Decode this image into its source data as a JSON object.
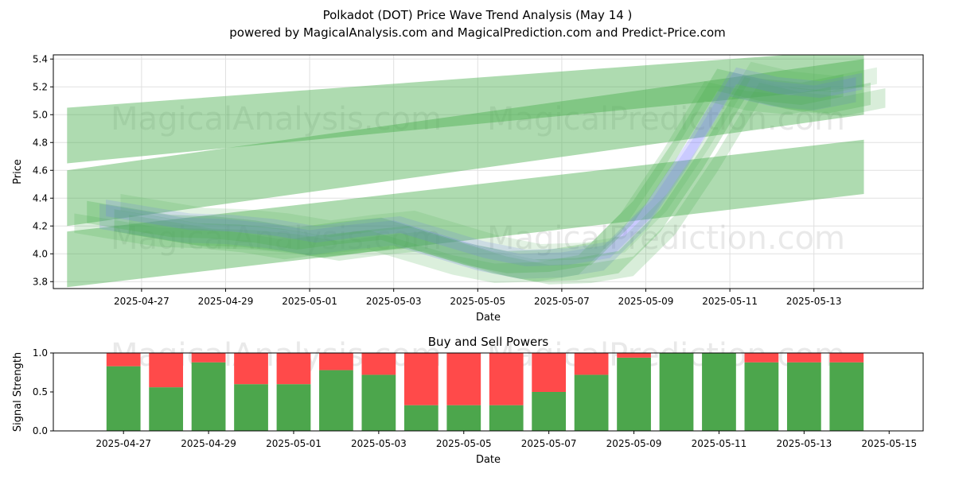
{
  "header": {
    "title_line1": "Polkadot (DOT) Price Wave Trend Analysis (May 14 )",
    "title_line2": "powered by MagicalAnalysis.com and MagicalPrediction.com and Predict-Price.com"
  },
  "watermarks": {
    "left": "MagicalAnalysis.com",
    "right": "MagicalPrediction.com"
  },
  "colors": {
    "green_band": "#4caf50",
    "blue_band": "#6f6fff",
    "buy": "#4ca64c",
    "sell": "#ff4a4a",
    "grid": "#e0e0e0"
  },
  "chart_data": [
    {
      "type": "area",
      "title": "",
      "xlabel": "Date",
      "ylabel": "Price",
      "ylim": [
        3.75,
        5.43
      ],
      "y_ticks": [
        "3.8",
        "4.0",
        "4.2",
        "4.4",
        "4.6",
        "4.8",
        "5.0",
        "5.2",
        "5.4"
      ],
      "x_ticks": [
        "2025-04-27",
        "2025-04-29",
        "2025-05-01",
        "2025-05-03",
        "2025-05-05",
        "2025-05-07",
        "2025-05-09",
        "2025-05-11",
        "2025-05-13"
      ],
      "grid": true,
      "price_line": {
        "dates": [
          "2025-04-26",
          "2025-04-27",
          "2025-04-28",
          "2025-04-29",
          "2025-04-30",
          "2025-05-01",
          "2025-05-02",
          "2025-05-03",
          "2025-05-04",
          "2025-05-05",
          "2025-05-06",
          "2025-05-07",
          "2025-05-08",
          "2025-05-09",
          "2025-05-10",
          "2025-05-11",
          "2025-05-12",
          "2025-05-13",
          "2025-05-14"
        ],
        "values": [
          4.27,
          4.22,
          4.17,
          4.16,
          4.13,
          4.08,
          4.12,
          4.15,
          4.06,
          3.97,
          3.91,
          3.92,
          3.97,
          4.27,
          4.72,
          5.22,
          5.15,
          5.12,
          5.18
        ]
      },
      "trend_bands": [
        {
          "start_date": "2025-04-25",
          "end_date": "2025-05-14",
          "start": [
            4.65,
            5.05
          ],
          "end": [
            5.2,
            5.47
          ]
        },
        {
          "start_date": "2025-04-25",
          "end_date": "2025-05-14",
          "start": [
            4.2,
            4.6
          ],
          "end": [
            5.0,
            5.4
          ]
        },
        {
          "start_date": "2025-04-25",
          "end_date": "2025-05-14",
          "start": [
            3.76,
            4.16
          ],
          "end": [
            4.43,
            4.82
          ]
        }
      ]
    },
    {
      "type": "bar",
      "title": "Buy and Sell Powers",
      "xlabel": "Date",
      "ylabel": "Signal Strength",
      "ylim": [
        0,
        1
      ],
      "y_ticks": [
        "0.0",
        "0.5",
        "1.0"
      ],
      "x_ticks": [
        "2025-04-27",
        "2025-04-29",
        "2025-05-01",
        "2025-05-03",
        "2025-05-05",
        "2025-05-07",
        "2025-05-09",
        "2025-05-11",
        "2025-05-13",
        "2025-05-15"
      ],
      "categories": [
        "2025-04-27",
        "2025-04-28",
        "2025-04-29",
        "2025-04-30",
        "2025-05-01",
        "2025-05-02",
        "2025-05-03",
        "2025-05-04",
        "2025-05-05",
        "2025-05-06",
        "2025-05-07",
        "2025-05-08",
        "2025-05-09",
        "2025-05-10",
        "2025-05-11",
        "2025-05-12",
        "2025-05-13",
        "2025-05-14"
      ],
      "series": [
        {
          "values": [
            0.83,
            0.56,
            0.88,
            0.6,
            0.6,
            0.78,
            0.72,
            0.33,
            0.33,
            0.33,
            0.5,
            0.72,
            0.94,
            1.0,
            1.0,
            0.88,
            0.88,
            0.88
          ]
        },
        {
          "values": [
            0.17,
            0.44,
            0.12,
            0.4,
            0.4,
            0.22,
            0.28,
            0.67,
            0.67,
            0.67,
            0.5,
            0.28,
            0.06,
            0.0,
            0.0,
            0.12,
            0.12,
            0.12
          ]
        }
      ]
    }
  ]
}
